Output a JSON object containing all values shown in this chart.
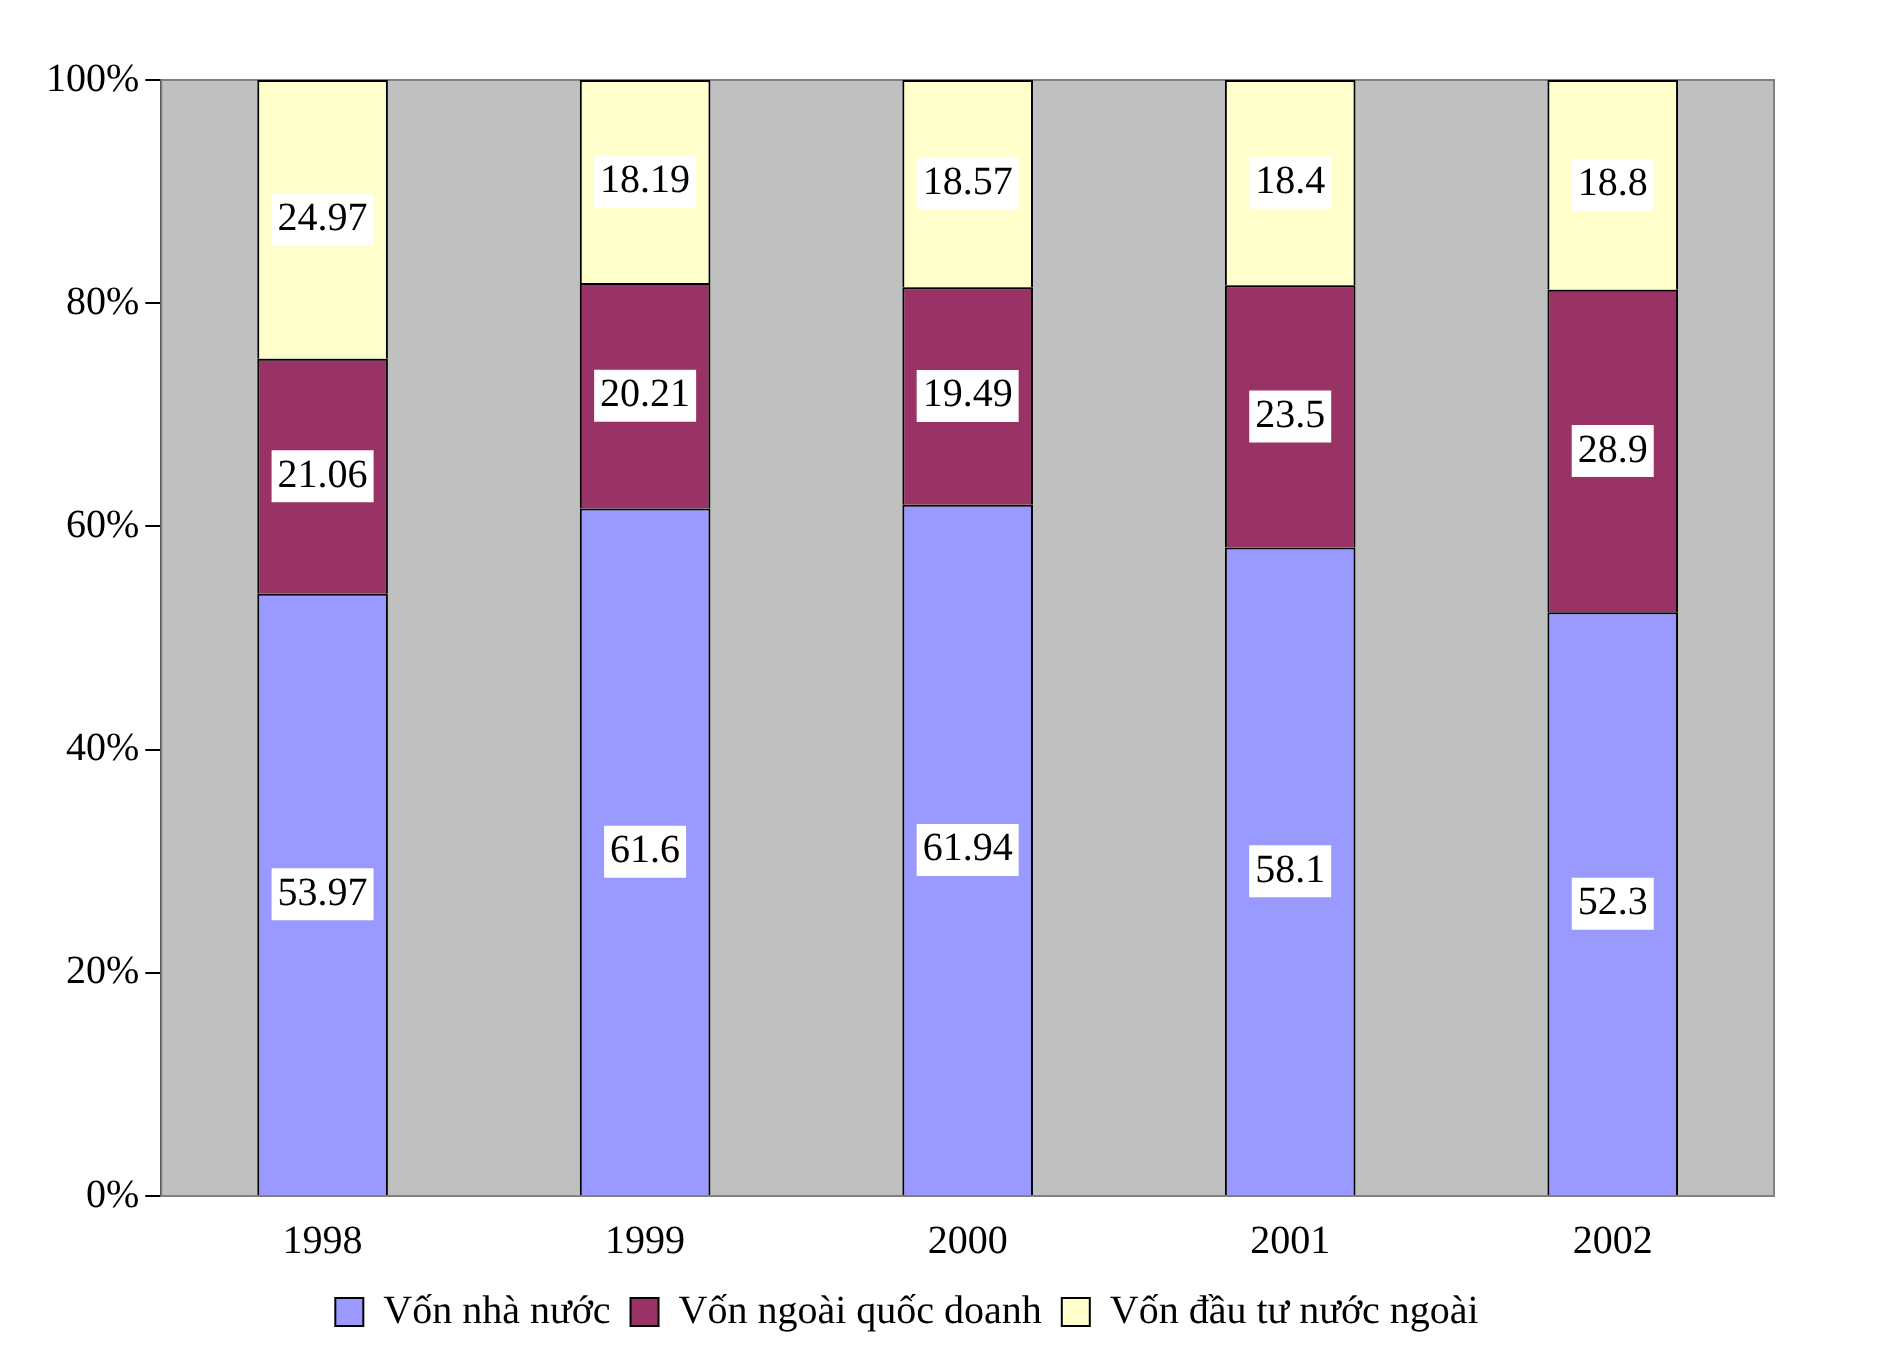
{
  "chart_data": {
    "type": "bar",
    "stacked": true,
    "categories": [
      "1998",
      "1999",
      "2000",
      "2001",
      "2002"
    ],
    "series": [
      {
        "name": "Vốn nhà nước",
        "color": "#9999ff",
        "values": [
          53.97,
          61.6,
          61.94,
          58.1,
          52.3
        ]
      },
      {
        "name": "Vốn ngoài quốc doanh",
        "color": "#993366",
        "values": [
          21.06,
          20.21,
          19.49,
          23.5,
          28.9
        ]
      },
      {
        "name": "Vốn đầu tư nước ngoài",
        "color": "#ffffcc",
        "values": [
          24.97,
          18.19,
          18.57,
          18.4,
          18.8
        ]
      }
    ],
    "ylim": [
      0,
      100
    ],
    "yticks": [
      {
        "value": 0,
        "label": "0%"
      },
      {
        "value": 20,
        "label": "20%"
      },
      {
        "value": 40,
        "label": "40%"
      },
      {
        "value": 60,
        "label": "60%"
      },
      {
        "value": 80,
        "label": "80%"
      },
      {
        "value": 100,
        "label": "100%"
      }
    ],
    "grid": false,
    "legend": "bottom",
    "data_labels": true
  }
}
